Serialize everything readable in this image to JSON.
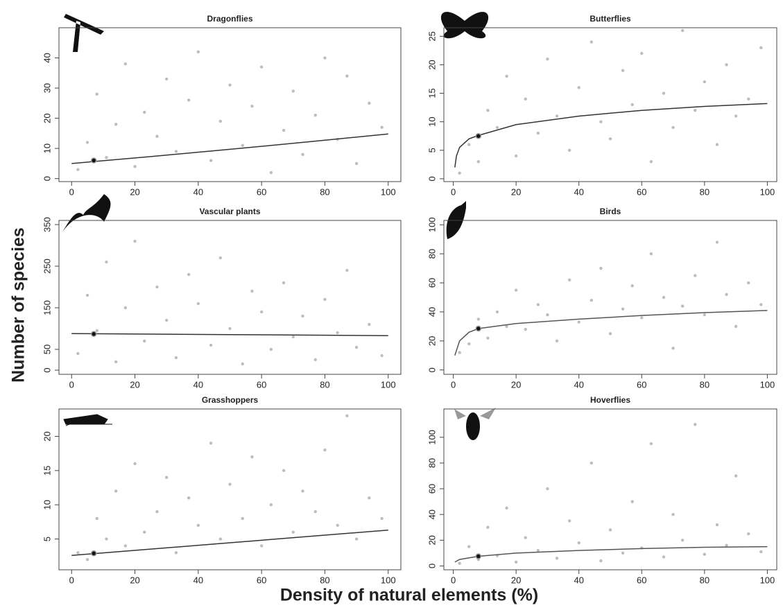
{
  "xlabel": "Density of natural elements (%)",
  "ylabel": "Number of species",
  "chart_data": [
    {
      "type": "scatter",
      "title": "Dragonflies",
      "xlim": [
        -4,
        104
      ],
      "xticks": [
        0,
        20,
        40,
        60,
        80,
        100
      ],
      "ylim": [
        -1,
        50
      ],
      "yticks": [
        0,
        10,
        20,
        30,
        40
      ],
      "points": {
        "color": "#bdbdbd",
        "x": [
          2,
          5,
          8,
          11,
          14,
          17,
          20,
          23,
          27,
          30,
          33,
          37,
          40,
          44,
          47,
          50,
          54,
          57,
          60,
          63,
          67,
          70,
          73,
          77,
          80,
          84,
          87,
          90,
          94,
          98
        ],
        "y": [
          3,
          12,
          28,
          7,
          18,
          38,
          4,
          22,
          14,
          33,
          9,
          26,
          42,
          6,
          19,
          31,
          11,
          24,
          37,
          2,
          16,
          29,
          8,
          21,
          40,
          13,
          34,
          5,
          25,
          17
        ]
      },
      "fit": {
        "color": "#333333",
        "x": [
          0,
          25,
          50,
          75,
          100
        ],
        "y": [
          5,
          7.3,
          9.7,
          12.2,
          14.8
        ]
      },
      "marker": {
        "color": "#111111",
        "x": 7,
        "y": 6
      }
    },
    {
      "type": "scatter",
      "title": "Butterflies",
      "xlim": [
        -3,
        103
      ],
      "xticks": [
        0,
        20,
        40,
        60,
        80,
        100
      ],
      "ylim": [
        -0.5,
        26.5
      ],
      "yticks": [
        0,
        5,
        10,
        15,
        20,
        25
      ],
      "points": {
        "color": "#bdbdbd",
        "x": [
          2,
          5,
          8,
          11,
          14,
          17,
          20,
          23,
          27,
          30,
          33,
          37,
          40,
          44,
          47,
          50,
          54,
          57,
          60,
          63,
          67,
          70,
          73,
          77,
          80,
          84,
          87,
          90,
          94,
          98
        ],
        "y": [
          1,
          6,
          3,
          12,
          9,
          18,
          4,
          14,
          8,
          21,
          11,
          5,
          16,
          24,
          10,
          7,
          19,
          13,
          22,
          3,
          15,
          9,
          26,
          12,
          17,
          6,
          20,
          11,
          14,
          23
        ]
      },
      "fit": {
        "color": "#333333",
        "x": [
          0.5,
          1,
          2,
          5,
          8,
          20,
          40,
          60,
          80,
          100
        ],
        "y": [
          2,
          4,
          5.5,
          7,
          7.6,
          9.5,
          11,
          12,
          12.7,
          13.2
        ]
      },
      "marker": {
        "color": "#111111",
        "x": 8,
        "y": 7.5
      }
    },
    {
      "type": "scatter",
      "title": "Vascular plants",
      "xlim": [
        -4,
        104
      ],
      "xticks": [
        0,
        20,
        40,
        60,
        80,
        100
      ],
      "ylim": [
        -10,
        360
      ],
      "yticks": [
        0,
        50,
        150,
        250,
        350
      ],
      "points": {
        "color": "#bdbdbd",
        "x": [
          2,
          5,
          8,
          11,
          14,
          17,
          20,
          23,
          27,
          30,
          33,
          37,
          40,
          44,
          47,
          50,
          54,
          57,
          60,
          63,
          67,
          70,
          73,
          77,
          80,
          84,
          87,
          90,
          94,
          98
        ],
        "y": [
          40,
          180,
          95,
          260,
          20,
          150,
          310,
          70,
          200,
          120,
          30,
          230,
          160,
          60,
          270,
          100,
          15,
          190,
          140,
          50,
          210,
          80,
          130,
          25,
          170,
          90,
          240,
          55,
          110,
          35
        ]
      },
      "fit": {
        "color": "#333333",
        "x": [
          0,
          50,
          100
        ],
        "y": [
          88,
          85.5,
          83
        ]
      },
      "marker": {
        "color": "#111111",
        "x": 7,
        "y": 87
      }
    },
    {
      "type": "scatter",
      "title": "Birds",
      "xlim": [
        -3,
        103
      ],
      "xticks": [
        0,
        20,
        40,
        60,
        80,
        100
      ],
      "ylim": [
        -3,
        103
      ],
      "yticks": [
        0,
        20,
        40,
        60,
        80,
        100
      ],
      "points": {
        "color": "#bdbdbd",
        "x": [
          2,
          5,
          8,
          11,
          14,
          17,
          20,
          23,
          27,
          30,
          33,
          37,
          40,
          44,
          47,
          50,
          54,
          57,
          60,
          63,
          67,
          70,
          73,
          77,
          80,
          84,
          87,
          90,
          94,
          98
        ],
        "y": [
          12,
          18,
          35,
          22,
          40,
          30,
          55,
          28,
          45,
          38,
          20,
          62,
          33,
          48,
          70,
          25,
          42,
          58,
          36,
          80,
          50,
          15,
          44,
          65,
          38,
          88,
          52,
          30,
          60,
          45
        ]
      },
      "fit": {
        "color": "#555555",
        "x": [
          0.5,
          2,
          5,
          8,
          20,
          40,
          60,
          80,
          100
        ],
        "y": [
          10,
          20,
          26,
          28.5,
          32,
          35,
          37.5,
          39.5,
          41
        ]
      },
      "marker": {
        "color": "#111111",
        "x": 8,
        "y": 28.5
      }
    },
    {
      "type": "scatter",
      "title": "Grasshoppers",
      "xlim": [
        -4,
        104
      ],
      "xticks": [
        0,
        20,
        40,
        60,
        80,
        100
      ],
      "ylim": [
        0.5,
        24
      ],
      "yticks": [
        5,
        10,
        15,
        20
      ],
      "points": {
        "color": "#bdbdbd",
        "x": [
          2,
          5,
          8,
          11,
          14,
          17,
          20,
          23,
          27,
          30,
          33,
          37,
          40,
          44,
          47,
          50,
          54,
          57,
          60,
          63,
          67,
          70,
          73,
          77,
          80,
          84,
          87,
          90,
          94,
          98
        ],
        "y": [
          3,
          2,
          8,
          5,
          12,
          4,
          16,
          6,
          9,
          14,
          3,
          11,
          7,
          19,
          5,
          13,
          8,
          17,
          4,
          10,
          15,
          6,
          12,
          9,
          18,
          7,
          23,
          5,
          11,
          8
        ]
      },
      "fit": {
        "color": "#333333",
        "x": [
          0,
          50,
          100
        ],
        "y": [
          2.6,
          4.45,
          6.3
        ]
      },
      "marker": {
        "color": "#111111",
        "x": 7,
        "y": 2.9
      }
    },
    {
      "type": "scatter",
      "title": "Hoverflies",
      "xlim": [
        -3,
        103
      ],
      "xticks": [
        0,
        20,
        40,
        60,
        80,
        100
      ],
      "ylim": [
        -3,
        122
      ],
      "yticks": [
        0,
        20,
        40,
        60,
        80,
        100
      ],
      "points": {
        "color": "#bdbdbd",
        "x": [
          2,
          5,
          8,
          11,
          14,
          17,
          20,
          23,
          27,
          30,
          33,
          37,
          40,
          44,
          47,
          50,
          54,
          57,
          60,
          63,
          67,
          70,
          73,
          77,
          80,
          84,
          87,
          90,
          94,
          98
        ],
        "y": [
          2,
          15,
          5,
          30,
          8,
          45,
          3,
          22,
          12,
          60,
          6,
          35,
          18,
          80,
          4,
          28,
          10,
          50,
          14,
          95,
          7,
          40,
          20,
          110,
          9,
          32,
          16,
          70,
          25,
          11
        ]
      },
      "fit": {
        "color": "#555555",
        "x": [
          0.5,
          2,
          8,
          20,
          40,
          60,
          80,
          100
        ],
        "y": [
          3,
          5,
          7.5,
          10,
          12,
          13.5,
          14.5,
          15
        ]
      },
      "marker": {
        "color": "#111111",
        "x": 8,
        "y": 7.5
      }
    }
  ]
}
